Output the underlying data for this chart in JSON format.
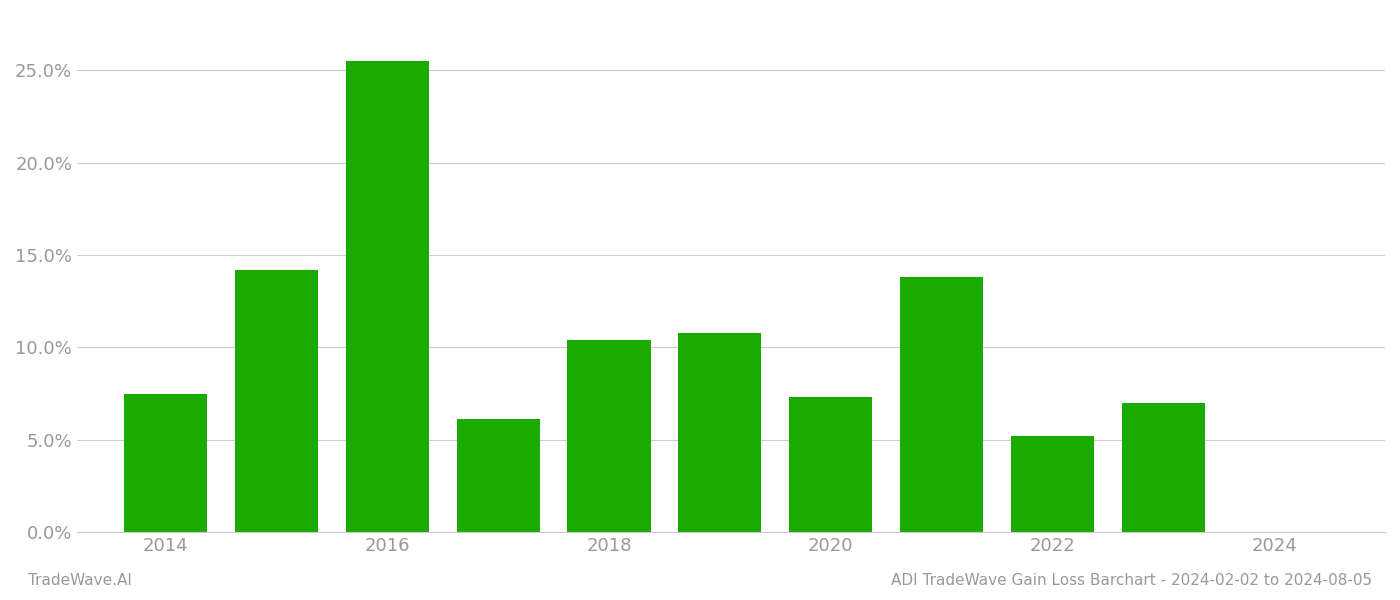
{
  "years": [
    2014,
    2015,
    2016,
    2017,
    2018,
    2019,
    2020,
    2021,
    2022,
    2023
  ],
  "values": [
    0.075,
    0.142,
    0.255,
    0.061,
    0.104,
    0.108,
    0.073,
    0.138,
    0.052,
    0.07
  ],
  "bar_color": "#1aaa00",
  "background_color": "#ffffff",
  "grid_color": "#cccccc",
  "ylabel_color": "#999999",
  "xlabel_color": "#999999",
  "ylim": [
    0,
    0.28
  ],
  "yticks": [
    0.0,
    0.05,
    0.1,
    0.15,
    0.2,
    0.25
  ],
  "xtick_labels": [
    "2014",
    "2016",
    "2018",
    "2020",
    "2022",
    "2024"
  ],
  "xtick_positions": [
    2014,
    2016,
    2018,
    2020,
    2022,
    2024
  ],
  "xlim_left": 2013.2,
  "xlim_right": 2025.0,
  "footer_left": "TradeWave.AI",
  "footer_right": "ADI TradeWave Gain Loss Barchart - 2024-02-02 to 2024-08-05",
  "footer_color": "#999999",
  "bar_width": 0.75
}
